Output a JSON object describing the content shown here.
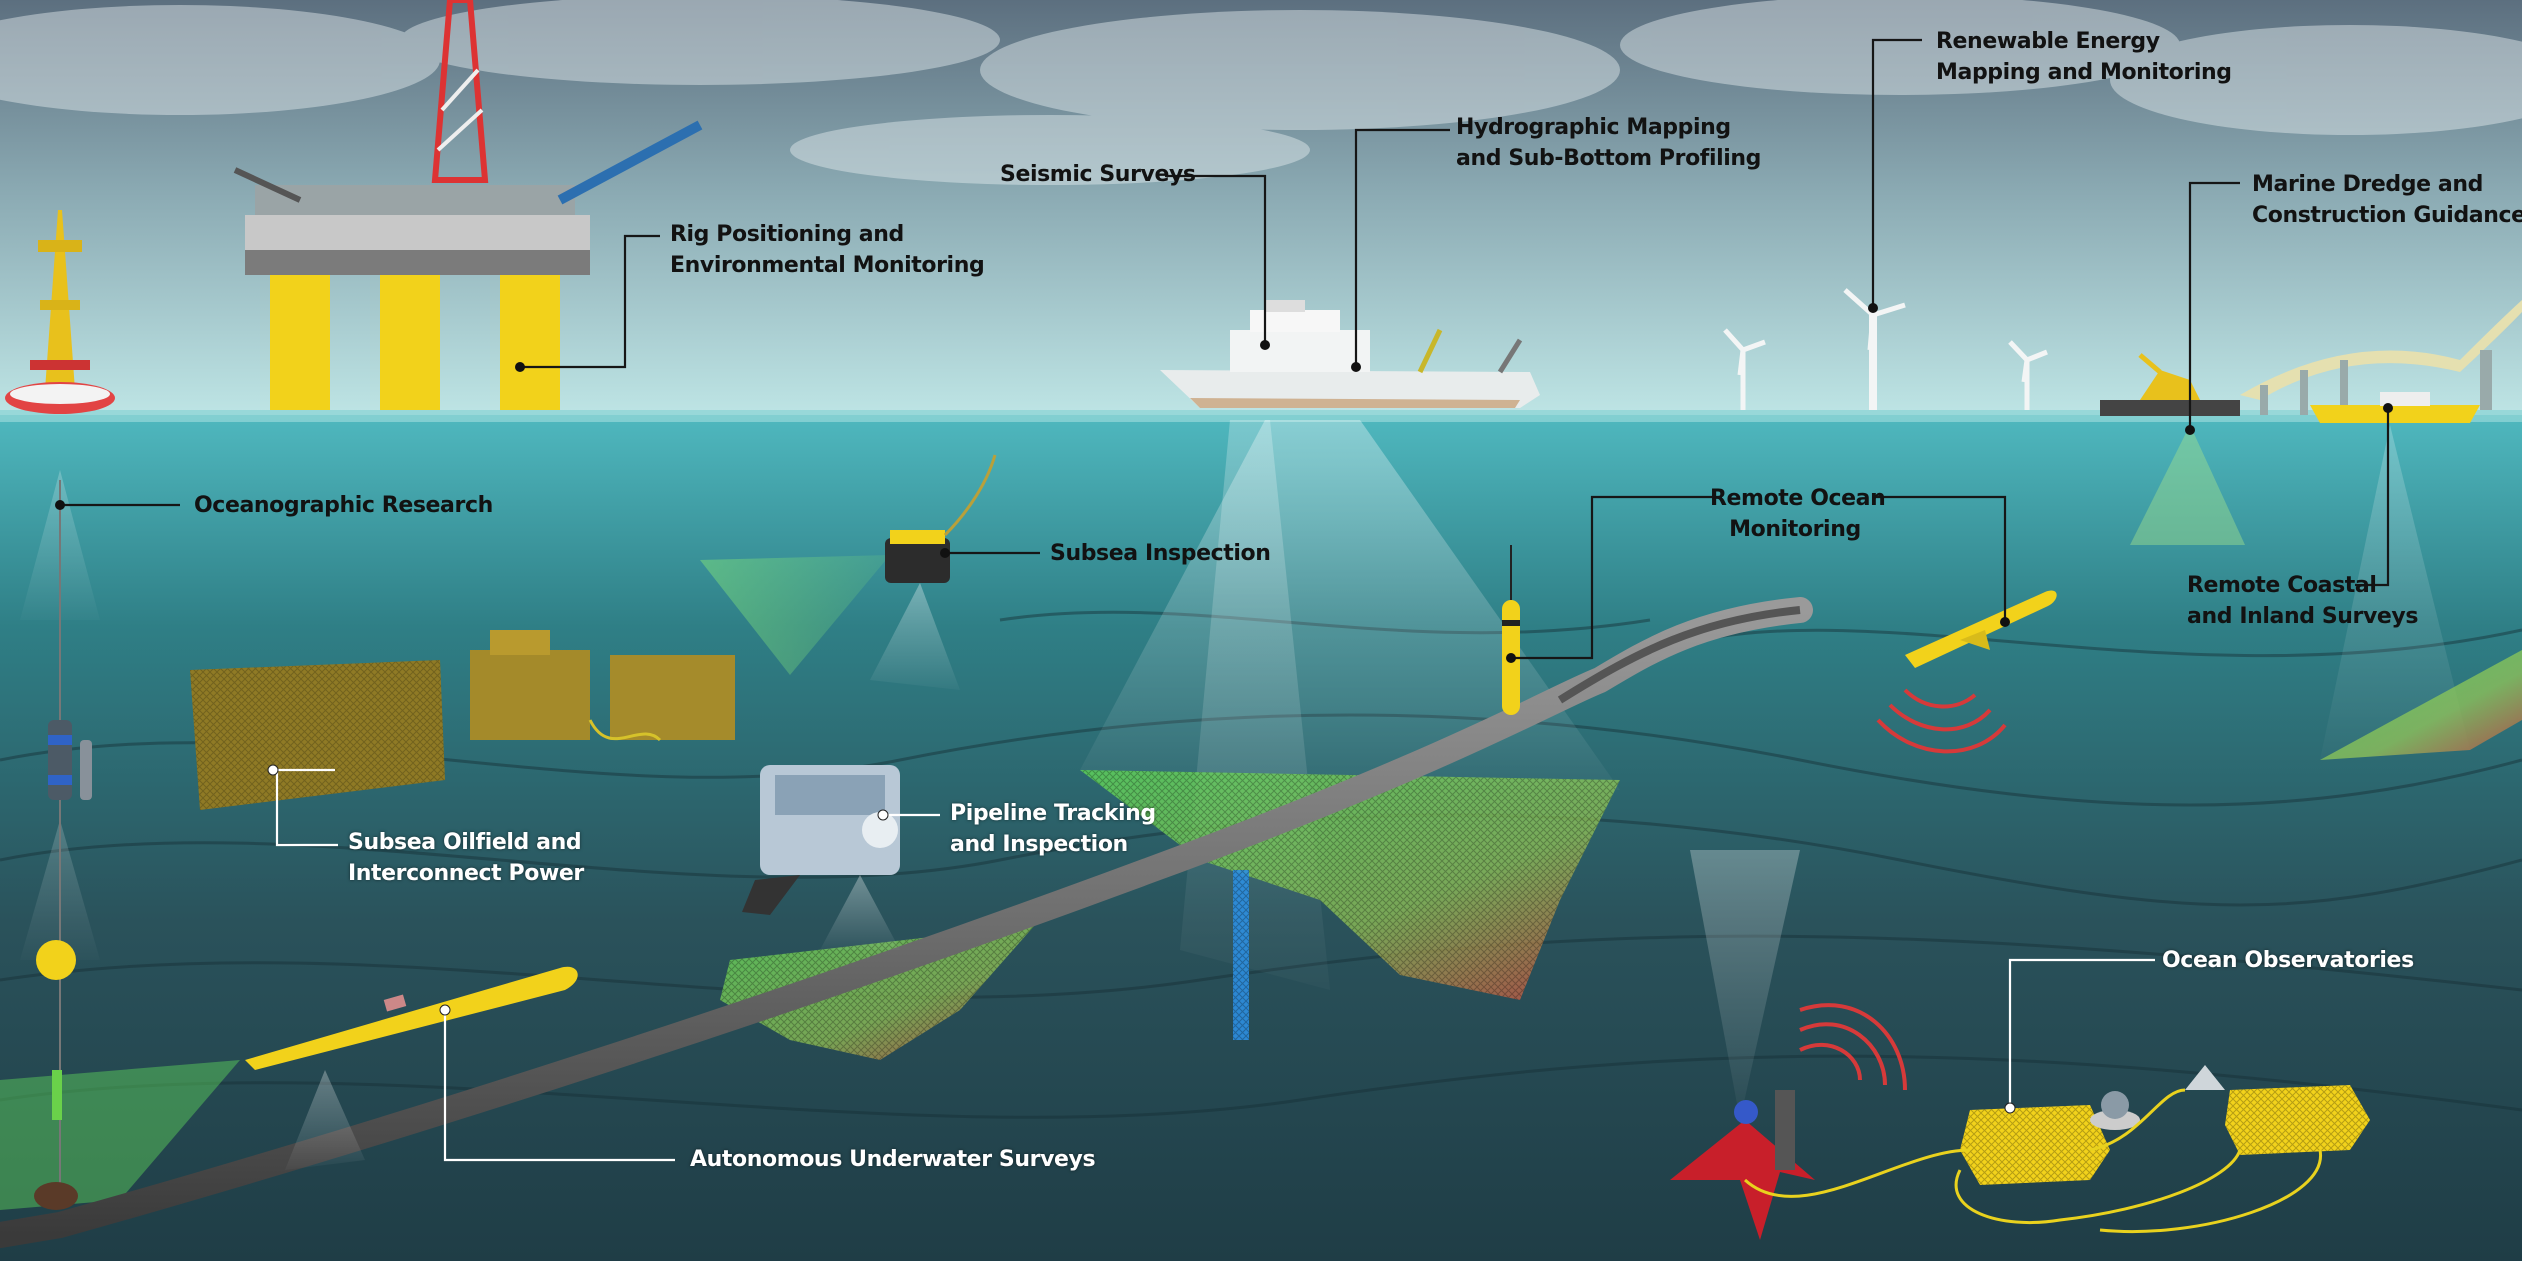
{
  "labels": {
    "rig_positioning": "Rig Positioning and\nEnvironmental Monitoring",
    "seismic_surveys": "Seismic Surveys",
    "hydrographic_mapping": "Hydrographic Mapping\nand Sub-Bottom Profiling",
    "renewable_energy": "Renewable Energy\nMapping and Monitoring",
    "marine_dredge": "Marine Dredge and\nConstruction Guidance",
    "oceanographic_research": "Oceanographic Research",
    "subsea_inspection": "Subsea Inspection",
    "remote_ocean_monitoring": "Remote Ocean\nMonitoring",
    "remote_coastal": "Remote Coastal\nand Inland Surveys",
    "subsea_oilfield": "Subsea Oilfield and\nInterconnect Power",
    "pipeline_tracking": "Pipeline Tracking\nand Inspection",
    "ocean_observatories": "Ocean Observatories",
    "autonomous_underwater": "Autonomous Underwater Surveys"
  },
  "colors": {
    "sky_top": "#5c6f7f",
    "sky_horizon": "#bfe6e6",
    "water_surface": "#4fb8bf",
    "deep_water": "#1f3d46",
    "equipment_yellow": "#f2d21b",
    "sonar_green": "#5fd65a",
    "sonar_red": "#d94040",
    "pipeline": "#6e6e6e",
    "ship_hull": "#e8ecec",
    "dark_text": "#121212",
    "light_text": "#ffffff"
  }
}
